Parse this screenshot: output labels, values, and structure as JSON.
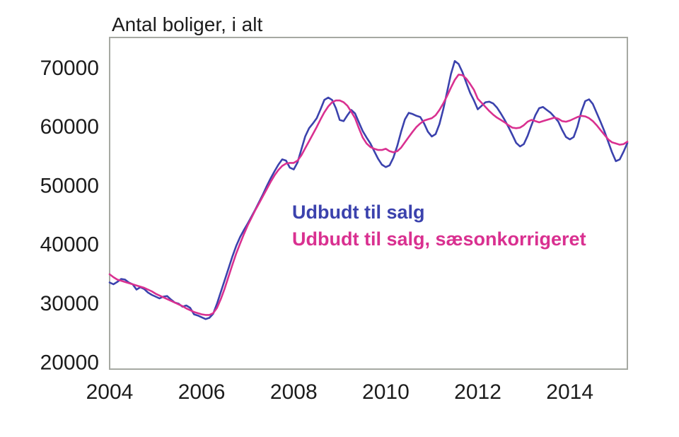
{
  "title": "Antal boliger, i alt",
  "legend": {
    "series1_label": "Udbudt til salg",
    "series2_label": "Udbudt til salg, sæsonkorrigeret"
  },
  "colors": {
    "series1": "#3b42ad",
    "series2": "#d93090",
    "frame": "#a6a9a2",
    "text": "#1c1c1c"
  },
  "chart_data": {
    "type": "line",
    "title": "Antal boliger, i alt",
    "xlabel": "",
    "ylabel": "Antal boliger, i alt",
    "x_unit": "monthly, Jan 2004 - Apr 2015 (decimal years)",
    "x_start": 2004.0,
    "x_step": 0.0833333,
    "xlim": [
      2004.0,
      2015.25
    ],
    "ylim": [
      18900,
      75200
    ],
    "xticks": [
      2004,
      2006,
      2008,
      2010,
      2012,
      2014
    ],
    "yticks": [
      20000,
      30000,
      40000,
      50000,
      60000,
      70000
    ],
    "grid": false,
    "legend_position": "inside-center",
    "series": [
      {
        "name": "Udbudt til salg",
        "color": "#3b42ad",
        "values": [
          33600,
          33300,
          33700,
          34200,
          34100,
          33600,
          33300,
          32400,
          32800,
          32500,
          31900,
          31500,
          31200,
          30900,
          31200,
          31300,
          30700,
          30200,
          30000,
          29500,
          29700,
          29300,
          28200,
          28000,
          27700,
          27400,
          27600,
          28300,
          30000,
          32000,
          34000,
          36000,
          38000,
          39800,
          41300,
          42500,
          43600,
          44800,
          46000,
          47300,
          48600,
          50000,
          51300,
          52500,
          53600,
          54500,
          54300,
          53100,
          52800,
          54000,
          56200,
          58400,
          59800,
          60600,
          61500,
          63000,
          64600,
          65000,
          64600,
          63200,
          61200,
          61000,
          62000,
          62900,
          62300,
          60800,
          59300,
          58200,
          57200,
          55900,
          54600,
          53600,
          53200,
          53500,
          54800,
          56800,
          59200,
          61300,
          62400,
          62200,
          61900,
          61700,
          60600,
          59200,
          58400,
          58800,
          60500,
          63000,
          66000,
          69000,
          71200,
          70700,
          69300,
          67500,
          65800,
          64500,
          63000,
          63600,
          64200,
          64300,
          64000,
          63300,
          62300,
          61200,
          60000,
          58700,
          57300,
          56700,
          57100,
          58500,
          60300,
          62000,
          63200,
          63400,
          62900,
          62400,
          61700,
          60900,
          59500,
          58300,
          57900,
          58300,
          60100,
          62600,
          64400,
          64700,
          63900,
          62400,
          60900,
          59300,
          57500,
          55700,
          54200,
          54500,
          55800,
          57300
        ]
      },
      {
        "name": "Udbudt til salg, sæsonkorrigeret",
        "color": "#d93090",
        "values": [
          35000,
          34500,
          34100,
          33900,
          33700,
          33500,
          33300,
          33100,
          32900,
          32700,
          32400,
          32100,
          31700,
          31400,
          31100,
          30800,
          30500,
          30200,
          29900,
          29600,
          29200,
          28900,
          28600,
          28400,
          28200,
          28100,
          28100,
          28400,
          29300,
          30800,
          32600,
          34600,
          36600,
          38500,
          40200,
          41800,
          43300,
          44600,
          45900,
          47100,
          48300,
          49500,
          50700,
          51800,
          52700,
          53400,
          53800,
          53900,
          53900,
          54300,
          55200,
          56400,
          57600,
          58800,
          60000,
          61300,
          62500,
          63500,
          64200,
          64500,
          64500,
          64200,
          63600,
          62600,
          61500,
          59800,
          58200,
          57200,
          56600,
          56300,
          56100,
          56100,
          56300,
          55900,
          55700,
          55900,
          56500,
          57400,
          58300,
          59200,
          60000,
          60600,
          61100,
          61300,
          61500,
          62000,
          62900,
          64000,
          65300,
          66700,
          68000,
          68900,
          68800,
          68200,
          67300,
          66300,
          64800,
          64100,
          63400,
          62700,
          62100,
          61600,
          61200,
          60800,
          60300,
          59900,
          59800,
          59900,
          60300,
          60900,
          61200,
          61000,
          60800,
          61000,
          61200,
          61400,
          61600,
          61400,
          61000,
          60900,
          61100,
          61400,
          61700,
          61900,
          61800,
          61500,
          61000,
          60300,
          59500,
          58700,
          57900,
          57400,
          57200,
          57000,
          57100,
          57500
        ]
      }
    ]
  }
}
